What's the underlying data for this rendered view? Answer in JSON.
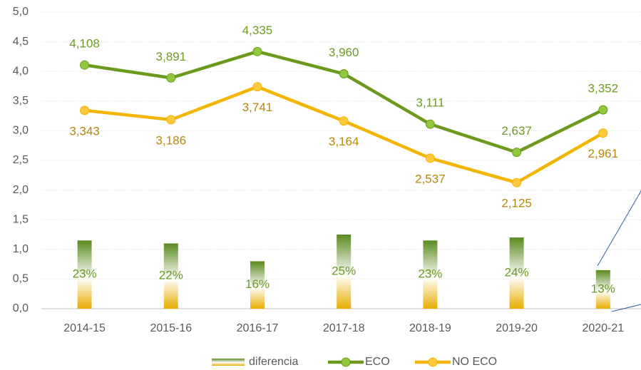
{
  "chart_data": {
    "type": "line",
    "categories": [
      "2014-15",
      "2015-16",
      "2016-17",
      "2017-18",
      "2018-19",
      "2019-20",
      "2020-21"
    ],
    "series": [
      {
        "name": "diferencia",
        "type": "bar",
        "axis": "y2",
        "colors": [
          "#5b8a1e",
          "#ffffff",
          "#e8ad00"
        ],
        "values": [
          23,
          22,
          16,
          25,
          23,
          24,
          13
        ],
        "value_labels": [
          "23%",
          "22%",
          "16%",
          "25%",
          "23%",
          "24%",
          "13%"
        ],
        "label_color": "#6b9a23"
      },
      {
        "name": "ECO",
        "type": "line",
        "color": "#6b9a1f",
        "marker_color": "#92c83e",
        "label_color": "#6f9a23",
        "values": [
          4.108,
          3.891,
          4.335,
          3.96,
          3.111,
          2.637,
          3.352
        ],
        "value_labels": [
          "4,108",
          "3,891",
          "4,335",
          "3,960",
          "3,111",
          "2,637",
          "3,352"
        ]
      },
      {
        "name": "NO ECO",
        "type": "line",
        "color": "#f2b600",
        "marker_color": "#ffc83d",
        "label_color": "#b8860b",
        "values": [
          3.343,
          3.186,
          3.741,
          3.164,
          2.537,
          2.125,
          2.961
        ],
        "value_labels": [
          "3,343",
          "3,186",
          "3,741",
          "3,164",
          "2,537",
          "2,125",
          "2,961"
        ]
      }
    ],
    "ylim": [
      0,
      5
    ],
    "yticks": [
      {
        "value": 0,
        "label": "0,0"
      },
      {
        "value": 0.5,
        "label": "0,5"
      },
      {
        "value": 1,
        "label": "1,0"
      },
      {
        "value": 1.5,
        "label": "1,5"
      },
      {
        "value": 2,
        "label": "2,0"
      },
      {
        "value": 2.5,
        "label": "2,5"
      },
      {
        "value": 3,
        "label": "3,0"
      },
      {
        "value": 3.5,
        "label": "3,5"
      },
      {
        "value": 4,
        "label": "4,0"
      },
      {
        "value": 4.5,
        "label": "4,5"
      },
      {
        "value": 5,
        "label": "5,0"
      }
    ],
    "y2lim": [
      0,
      100
    ],
    "grid": true,
    "legend": "bottom"
  }
}
